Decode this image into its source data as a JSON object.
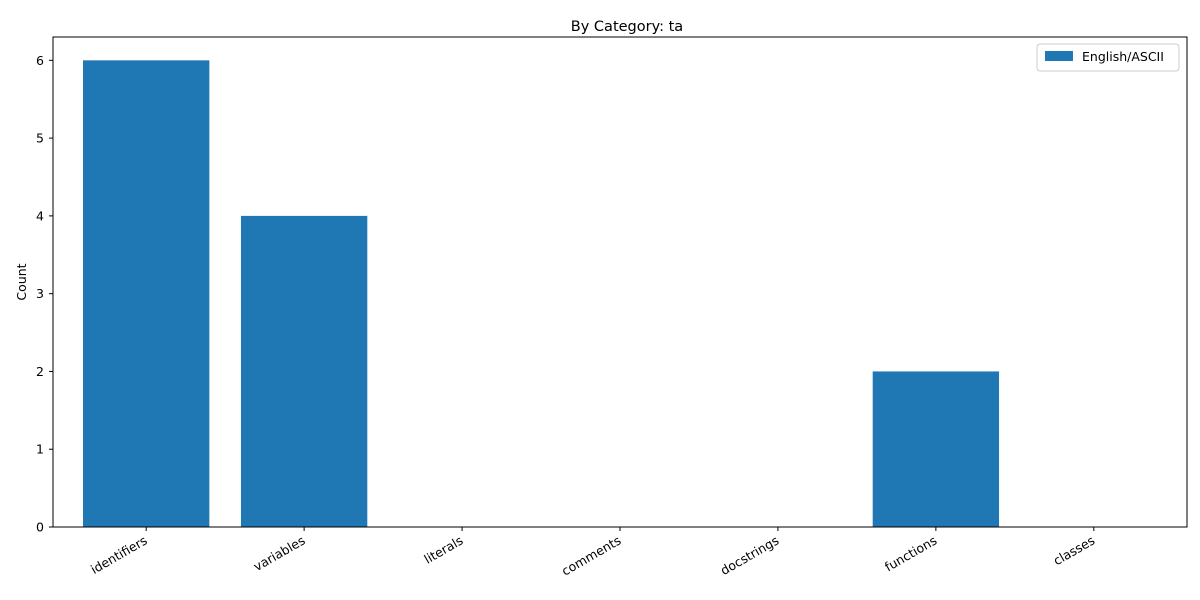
{
  "chart_data": {
    "type": "bar",
    "title": "By Category: ta",
    "xlabel": "",
    "ylabel": "Count",
    "categories": [
      "identifiers",
      "variables",
      "literals",
      "comments",
      "docstrings",
      "functions",
      "classes"
    ],
    "series": [
      {
        "name": "English/ASCII",
        "values": [
          6,
          4,
          0,
          0,
          0,
          2,
          0
        ],
        "color": "#1f77b4"
      }
    ],
    "ylim": [
      0,
      6.3
    ],
    "yticks": [
      0,
      1,
      2,
      3,
      4,
      5,
      6
    ],
    "grid": false,
    "legend_position": "top-right"
  }
}
